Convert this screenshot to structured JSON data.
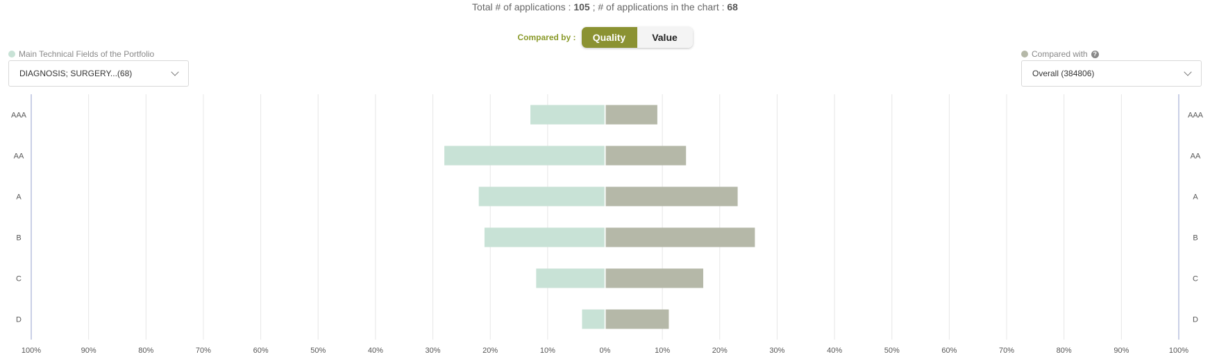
{
  "summary": {
    "total_prefix": "Total # of applications : ",
    "total_value": "105",
    "chart_prefix": " ; # of applications in the chart : ",
    "chart_value": "68"
  },
  "compared_by": {
    "label": "Compared by :",
    "options": [
      "Quality",
      "Value"
    ],
    "selected": "Quality"
  },
  "left_selector": {
    "legend_label": "Main Technical Fields of the Portfolio",
    "value": "DIAGNOSIS; SURGERY...(68)",
    "color": "#c8e2d6"
  },
  "right_selector": {
    "legend_label": "Compared with",
    "value": "Overall (384806)",
    "color": "#b5b8a8"
  },
  "chart_data": {
    "type": "bar",
    "orientation": "horizontal-diverging",
    "categories": [
      "AAA",
      "AA",
      "A",
      "B",
      "C",
      "D"
    ],
    "series": [
      {
        "name": "Main Technical Fields of the Portfolio",
        "side": "left",
        "color": "#c8e2d6",
        "values": [
          13,
          28,
          22,
          21,
          12,
          4
        ]
      },
      {
        "name": "Compared with",
        "side": "right",
        "color": "#b5b8a8",
        "values": [
          9,
          14,
          23,
          26,
          17,
          11
        ]
      }
    ],
    "x_ticks": [
      "100%",
      "90%",
      "80%",
      "70%",
      "60%",
      "50%",
      "40%",
      "30%",
      "20%",
      "10%",
      "0%",
      "10%",
      "20%",
      "30%",
      "40%",
      "50%",
      "60%",
      "70%",
      "80%",
      "90%",
      "100%"
    ],
    "xlim": [
      -100,
      100
    ],
    "grid": true
  }
}
